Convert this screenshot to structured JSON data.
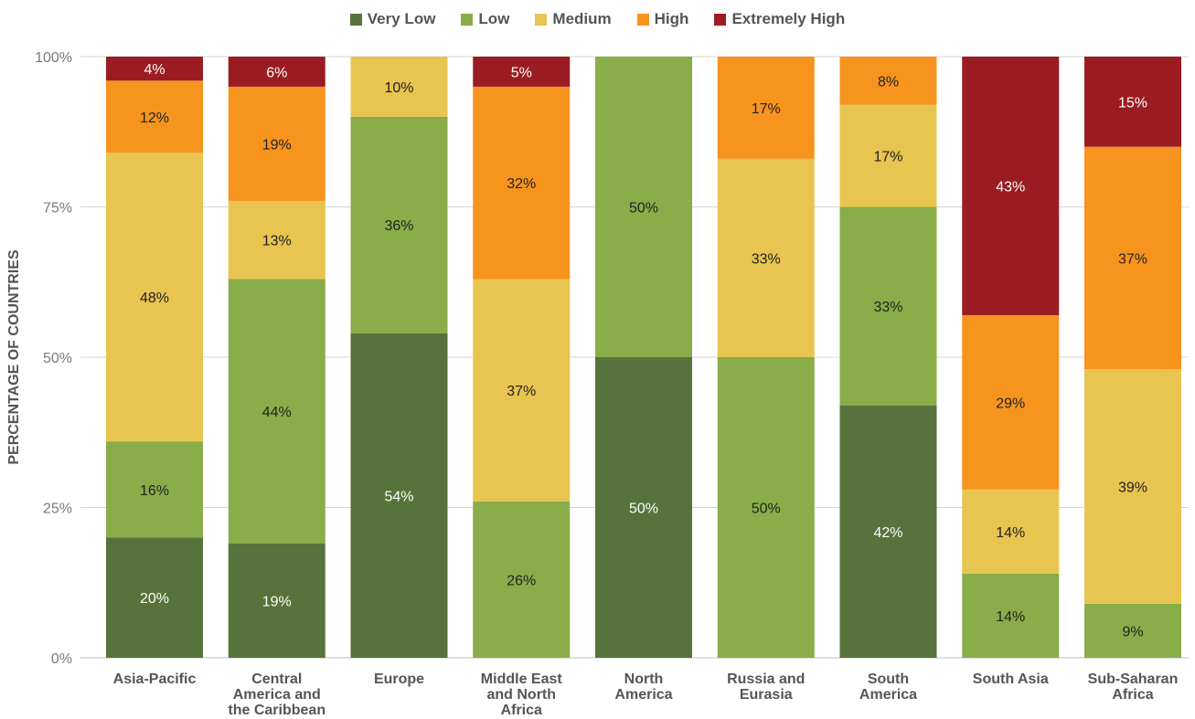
{
  "chart_data": {
    "type": "bar",
    "stacked": true,
    "ylabel": "PERCENTAGE OF COUNTRIES",
    "xlabel": "",
    "ylim": [
      0,
      100
    ],
    "yticks": [
      "0%",
      "25%",
      "50%",
      "75%",
      "100%"
    ],
    "ytick_values": [
      0,
      25,
      50,
      75,
      100
    ],
    "grid": true,
    "legend_position": "top",
    "categories": [
      [
        "Asia-Pacific"
      ],
      [
        "Central",
        "America and",
        "the Caribbean"
      ],
      [
        "Europe"
      ],
      [
        "Middle East",
        "and North",
        "Africa"
      ],
      [
        "North",
        "America"
      ],
      [
        "Russia and",
        "Eurasia"
      ],
      [
        "South",
        "America"
      ],
      [
        "South Asia"
      ],
      [
        "Sub-Saharan",
        "Africa"
      ]
    ],
    "series": [
      {
        "name": "Very Low",
        "color": "#55733b",
        "values": [
          20,
          19,
          54,
          0,
          50,
          0,
          42,
          0,
          0
        ],
        "labels": [
          "20%",
          "19%",
          "54%",
          "",
          "50%",
          "",
          "42%",
          "",
          ""
        ],
        "label_color": "#ffffff"
      },
      {
        "name": "Low",
        "color": "#88ad49",
        "values": [
          16,
          44,
          36,
          26,
          50,
          50,
          33,
          14,
          9
        ],
        "labels": [
          "16%",
          "44%",
          "36%",
          "26%",
          "50%",
          "50%",
          "33%",
          "14%",
          "9%"
        ],
        "label_color": "#222222"
      },
      {
        "name": "Medium",
        "color": "#e8c450",
        "values": [
          48,
          13,
          10,
          37,
          0,
          33,
          17,
          14,
          39
        ],
        "labels": [
          "48%",
          "13%",
          "10%",
          "37%",
          "",
          "33%",
          "17%",
          "14%",
          "39%"
        ],
        "label_color": "#222222"
      },
      {
        "name": "High",
        "color": "#f7941d",
        "values": [
          12,
          19,
          0,
          32,
          0,
          17,
          8,
          29,
          37
        ],
        "labels": [
          "12%",
          "19%",
          "",
          "32%",
          "",
          "17%",
          "8%",
          "29%",
          "37%"
        ],
        "label_color": "#222222"
      },
      {
        "name": "Extremely High",
        "color": "#9b1c22",
        "values": [
          4,
          6,
          0,
          5,
          0,
          0,
          0,
          43,
          15
        ],
        "labels": [
          "4%",
          "6%",
          "",
          "5%",
          "",
          "",
          "",
          "43%",
          "15%"
        ],
        "label_color": "#ffffff"
      }
    ]
  }
}
